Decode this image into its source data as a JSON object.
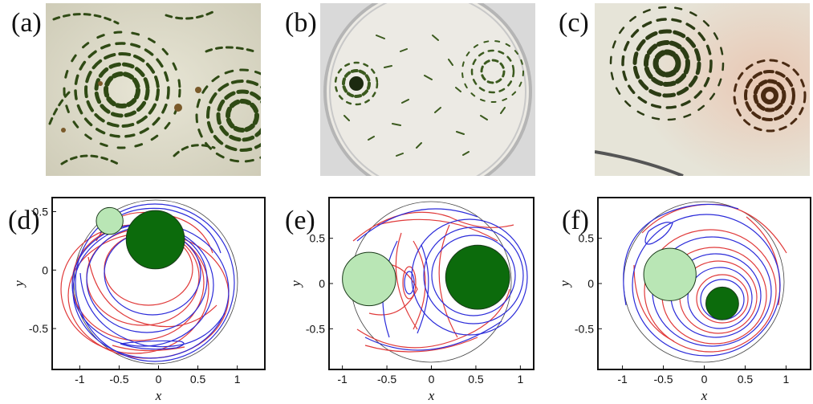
{
  "figure": {
    "photo_panels": [
      {
        "label": "(a)"
      },
      {
        "label": "(b)"
      },
      {
        "label": "(c)"
      }
    ],
    "plot_panels": [
      {
        "label": "(d)"
      },
      {
        "label": "(e)"
      },
      {
        "label": "(f)"
      }
    ]
  },
  "chart_data": [
    {
      "type": "scatter",
      "panel": "(d)",
      "xlabel": "x",
      "ylabel": "y",
      "xlim": [
        -1.35,
        1.35
      ],
      "ylim": [
        -0.85,
        0.62
      ],
      "xticks": [
        "-1",
        "-0.5",
        "0",
        "0.5",
        "1"
      ],
      "yticks": [
        "0.5",
        "0",
        "-0.5"
      ],
      "circles": [
        {
          "name": "light vortex",
          "cx": -0.62,
          "cy": 0.42,
          "r": 0.17,
          "color": "#b9e6b5"
        },
        {
          "name": "dark vortex",
          "cx": -0.04,
          "cy": 0.26,
          "r": 0.37,
          "color": "#0c6b0c"
        }
      ],
      "boundary": {
        "cx": 0,
        "cy": 0,
        "r": 1.0
      },
      "streamline_colors": [
        "#2b2bd9",
        "#e03a3a"
      ]
    },
    {
      "type": "scatter",
      "panel": "(e)",
      "xlabel": "x",
      "ylabel": "y",
      "xlim": [
        -1.15,
        1.15
      ],
      "ylim": [
        -0.95,
        0.95
      ],
      "xticks": [
        "-1",
        "-0.5",
        "0",
        "0.5",
        "1"
      ],
      "yticks": [
        "0.5",
        "0",
        "-0.5"
      ],
      "circles": [
        {
          "name": "light vortex",
          "cx": -0.7,
          "cy": 0.05,
          "r": 0.3,
          "color": "#b9e6b5"
        },
        {
          "name": "dark vortex",
          "cx": 0.52,
          "cy": 0.07,
          "r": 0.36,
          "color": "#0c6b0c"
        }
      ],
      "boundary": {
        "cx": 0,
        "cy": 0,
        "r": 1.0
      },
      "streamline_colors": [
        "#2b2bd9",
        "#e03a3a"
      ]
    },
    {
      "type": "scatter",
      "panel": "(f)",
      "xlabel": "x",
      "ylabel": "y",
      "xlim": [
        -1.3,
        1.3
      ],
      "ylim": [
        -0.95,
        0.95
      ],
      "xticks": [
        "-1",
        "-0.5",
        "0",
        "0.5",
        "1"
      ],
      "yticks": [
        "0.5",
        "0",
        "-0.5"
      ],
      "circles": [
        {
          "name": "light vortex",
          "cx": -0.42,
          "cy": 0.1,
          "r": 0.32,
          "color": "#b9e6b5"
        },
        {
          "name": "dark vortex",
          "cx": 0.22,
          "cy": -0.22,
          "r": 0.2,
          "color": "#0c6b0c"
        }
      ],
      "boundary": {
        "cx": 0,
        "cy": 0,
        "r": 1.0
      },
      "streamline_colors": [
        "#2b2bd9",
        "#e03a3a"
      ]
    }
  ]
}
